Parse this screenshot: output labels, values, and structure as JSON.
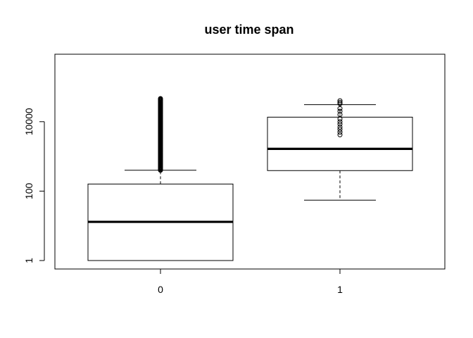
{
  "chart_data": {
    "type": "boxplot",
    "title": "user time span",
    "xlabel": "",
    "ylabel": "",
    "y_scale": "log10",
    "ylim": [
      1,
      50000
    ],
    "y_ticks": [
      1,
      100,
      10000
    ],
    "y_tick_labels": [
      "1",
      "100",
      "10000"
    ],
    "categories": [
      "0",
      "1"
    ],
    "boxes": [
      {
        "category": "0",
        "whisker_low": 1,
        "q1": 1,
        "median": 13,
        "q3": 160,
        "whisker_high": 400,
        "outlier_range": [
          400,
          47000
        ]
      },
      {
        "category": "1",
        "whisker_low": 55,
        "q1": 390,
        "median": 1650,
        "q3": 13500,
        "whisker_high": 31000,
        "outliers": [
          40000,
          36000,
          33000,
          24000,
          20000,
          16000,
          12000,
          10000,
          8500,
          7000,
          6000,
          5000,
          4200
        ]
      }
    ]
  }
}
